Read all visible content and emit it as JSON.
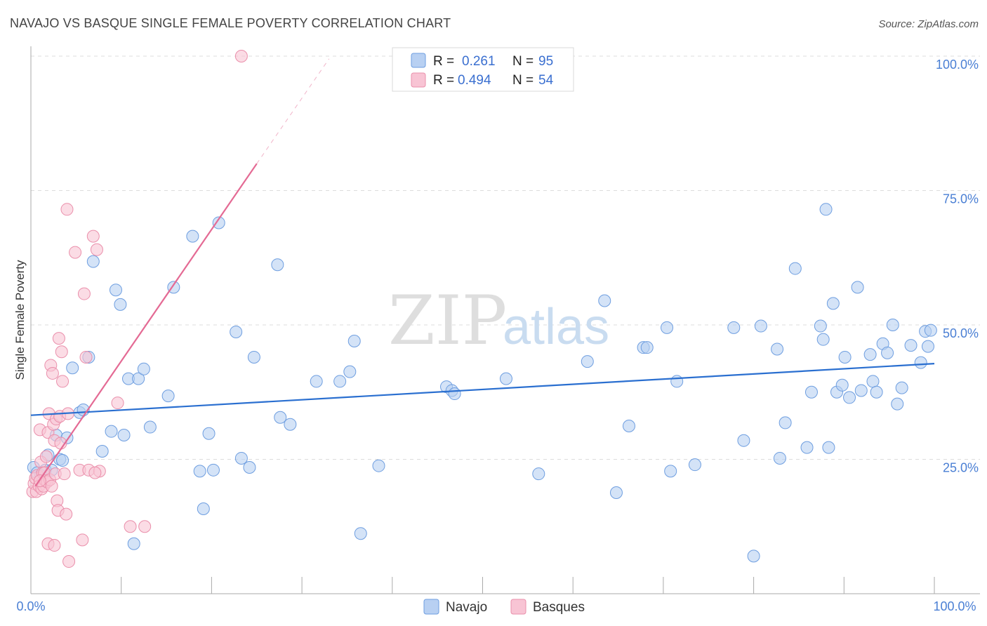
{
  "title": "NAVAJO VS BASQUE SINGLE FEMALE POVERTY CORRELATION CHART",
  "source": "Source: ZipAtlas.com",
  "watermark": {
    "zip": "ZIP",
    "atlas": "atlas"
  },
  "colors": {
    "navajo_fill": "#b8d0f2",
    "navajo_stroke": "#6e9ee0",
    "navajo_line": "#2a6fd0",
    "basques_fill": "#f8c4d4",
    "basques_stroke": "#ea8fab",
    "basques_line": "#e46a94",
    "grid": "#dcdcdc",
    "tick_text": "#4a7fd4"
  },
  "legend": {
    "navajo": {
      "r_label": "R =",
      "r_value": "0.261",
      "n_label": "N =",
      "n_value": "95"
    },
    "basques": {
      "r_label": "R =",
      "r_value": "0.494",
      "n_label": "N =",
      "n_value": "54"
    }
  },
  "chart_data": {
    "type": "scatter",
    "title": "NAVAJO VS BASQUE SINGLE FEMALE POVERTY CORRELATION CHART",
    "xlabel": "",
    "ylabel": "Single Female Poverty",
    "xlim": [
      0,
      100
    ],
    "ylim": [
      0,
      103
    ],
    "x_tick_labels": [
      "0.0%",
      "100.0%"
    ],
    "y_ticks": [
      {
        "value": 25,
        "label": "25.0%"
      },
      {
        "value": 50,
        "label": "50.0%"
      },
      {
        "value": 75,
        "label": "75.0%"
      },
      {
        "value": 100,
        "label": "100.0%"
      }
    ],
    "grid": true,
    "legend_position": "top-center",
    "series": [
      {
        "name": "Navajo",
        "trend": {
          "x0": 0,
          "y0": 33.2,
          "x1": 100,
          "y1": 42.8,
          "dashed_to": null
        },
        "points": [
          [
            0.3,
            23.5
          ],
          [
            0.7,
            22.5
          ],
          [
            1.1,
            22.0
          ],
          [
            1.6,
            23.0
          ],
          [
            1.9,
            25.8
          ],
          [
            2.3,
            23.0
          ],
          [
            2.8,
            29.5
          ],
          [
            3.2,
            25.0
          ],
          [
            3.5,
            24.8
          ],
          [
            4.0,
            29.0
          ],
          [
            4.6,
            42.0
          ],
          [
            5.4,
            33.7
          ],
          [
            5.8,
            34.2
          ],
          [
            6.4,
            44.0
          ],
          [
            6.9,
            61.8
          ],
          [
            7.9,
            26.5
          ],
          [
            8.9,
            30.2
          ],
          [
            9.4,
            56.5
          ],
          [
            9.9,
            53.8
          ],
          [
            10.3,
            29.5
          ],
          [
            10.8,
            40.0
          ],
          [
            11.4,
            9.3
          ],
          [
            11.9,
            40.0
          ],
          [
            12.5,
            41.8
          ],
          [
            13.2,
            31.0
          ],
          [
            15.8,
            57.0
          ],
          [
            15.2,
            36.8
          ],
          [
            17.9,
            66.5
          ],
          [
            18.7,
            22.8
          ],
          [
            19.1,
            15.8
          ],
          [
            19.7,
            29.8
          ],
          [
            20.2,
            23.0
          ],
          [
            20.8,
            69.0
          ],
          [
            22.7,
            48.7
          ],
          [
            23.3,
            25.2
          ],
          [
            24.2,
            23.5
          ],
          [
            24.7,
            44.0
          ],
          [
            27.3,
            61.2
          ],
          [
            27.6,
            32.8
          ],
          [
            28.7,
            31.5
          ],
          [
            31.6,
            39.5
          ],
          [
            34.2,
            39.5
          ],
          [
            35.3,
            41.3
          ],
          [
            35.8,
            47.0
          ],
          [
            36.5,
            11.2
          ],
          [
            38.5,
            23.8
          ],
          [
            46.0,
            38.5
          ],
          [
            46.6,
            37.8
          ],
          [
            46.9,
            37.2
          ],
          [
            52.6,
            40.0
          ],
          [
            56.2,
            22.3
          ],
          [
            61.6,
            43.2
          ],
          [
            63.5,
            54.5
          ],
          [
            64.8,
            18.8
          ],
          [
            66.2,
            31.2
          ],
          [
            67.8,
            45.8
          ],
          [
            68.2,
            45.8
          ],
          [
            70.4,
            49.5
          ],
          [
            70.8,
            22.8
          ],
          [
            71.5,
            39.5
          ],
          [
            73.5,
            24.0
          ],
          [
            77.8,
            49.5
          ],
          [
            78.9,
            28.5
          ],
          [
            80.0,
            7.0
          ],
          [
            80.8,
            49.8
          ],
          [
            82.6,
            45.5
          ],
          [
            82.9,
            25.2
          ],
          [
            83.5,
            31.8
          ],
          [
            84.6,
            60.5
          ],
          [
            85.9,
            27.2
          ],
          [
            86.4,
            37.5
          ],
          [
            87.4,
            49.8
          ],
          [
            87.7,
            47.3
          ],
          [
            88.0,
            71.5
          ],
          [
            88.3,
            27.2
          ],
          [
            88.8,
            54.0
          ],
          [
            89.2,
            37.5
          ],
          [
            89.8,
            38.8
          ],
          [
            90.1,
            44.0
          ],
          [
            90.6,
            36.5
          ],
          [
            91.5,
            57.0
          ],
          [
            91.9,
            37.8
          ],
          [
            92.9,
            44.5
          ],
          [
            93.2,
            39.5
          ],
          [
            93.6,
            37.5
          ],
          [
            94.3,
            46.5
          ],
          [
            94.8,
            44.8
          ],
          [
            95.4,
            50.0
          ],
          [
            95.9,
            35.3
          ],
          [
            96.4,
            38.3
          ],
          [
            97.4,
            46.2
          ],
          [
            98.5,
            43.0
          ],
          [
            99.0,
            48.8
          ],
          [
            99.3,
            46.0
          ],
          [
            99.6,
            49.0
          ]
        ]
      },
      {
        "name": "Basques",
        "trend": {
          "x0": 0.5,
          "y0": 20.0,
          "x1": 25.0,
          "y1": 80.0,
          "dashed_to": {
            "x": 33.0,
            "y": 99.5
          }
        },
        "points": [
          [
            0.2,
            19.0
          ],
          [
            0.35,
            20.5
          ],
          [
            0.5,
            21.5
          ],
          [
            0.6,
            19.0
          ],
          [
            0.7,
            22.0
          ],
          [
            0.9,
            20.0
          ],
          [
            1.0,
            30.5
          ],
          [
            1.1,
            24.5
          ],
          [
            1.2,
            19.5
          ],
          [
            1.3,
            22.5
          ],
          [
            1.4,
            20.0
          ],
          [
            1.5,
            22.5
          ],
          [
            1.6,
            21.0
          ],
          [
            1.7,
            25.5
          ],
          [
            1.8,
            20.8
          ],
          [
            1.9,
            30.0
          ],
          [
            2.0,
            33.5
          ],
          [
            2.1,
            21.2
          ],
          [
            2.2,
            42.5
          ],
          [
            2.3,
            20.0
          ],
          [
            2.4,
            41.0
          ],
          [
            2.5,
            31.5
          ],
          [
            2.6,
            28.5
          ],
          [
            2.7,
            22.3
          ],
          [
            2.8,
            32.5
          ],
          [
            2.9,
            17.3
          ],
          [
            3.0,
            15.5
          ],
          [
            3.1,
            47.5
          ],
          [
            3.2,
            33.0
          ],
          [
            3.3,
            28.0
          ],
          [
            3.4,
            45.0
          ],
          [
            3.5,
            39.5
          ],
          [
            3.7,
            22.3
          ],
          [
            3.9,
            14.8
          ],
          [
            4.0,
            71.5
          ],
          [
            4.1,
            33.5
          ],
          [
            4.2,
            6.0
          ],
          [
            1.9,
            9.3
          ],
          [
            2.6,
            9.0
          ],
          [
            4.9,
            63.5
          ],
          [
            5.4,
            23.0
          ],
          [
            5.7,
            10.0
          ],
          [
            5.9,
            55.8
          ],
          [
            6.1,
            44.0
          ],
          [
            6.4,
            23.0
          ],
          [
            6.9,
            66.5
          ],
          [
            7.3,
            64.0
          ],
          [
            7.6,
            22.8
          ],
          [
            7.1,
            22.5
          ],
          [
            9.6,
            35.5
          ],
          [
            11.0,
            12.5
          ],
          [
            12.6,
            12.5
          ],
          [
            23.3,
            100.0
          ],
          [
            1.0,
            21.0
          ]
        ]
      }
    ],
    "bottom_legend": [
      "Navajo",
      "Basques"
    ]
  }
}
